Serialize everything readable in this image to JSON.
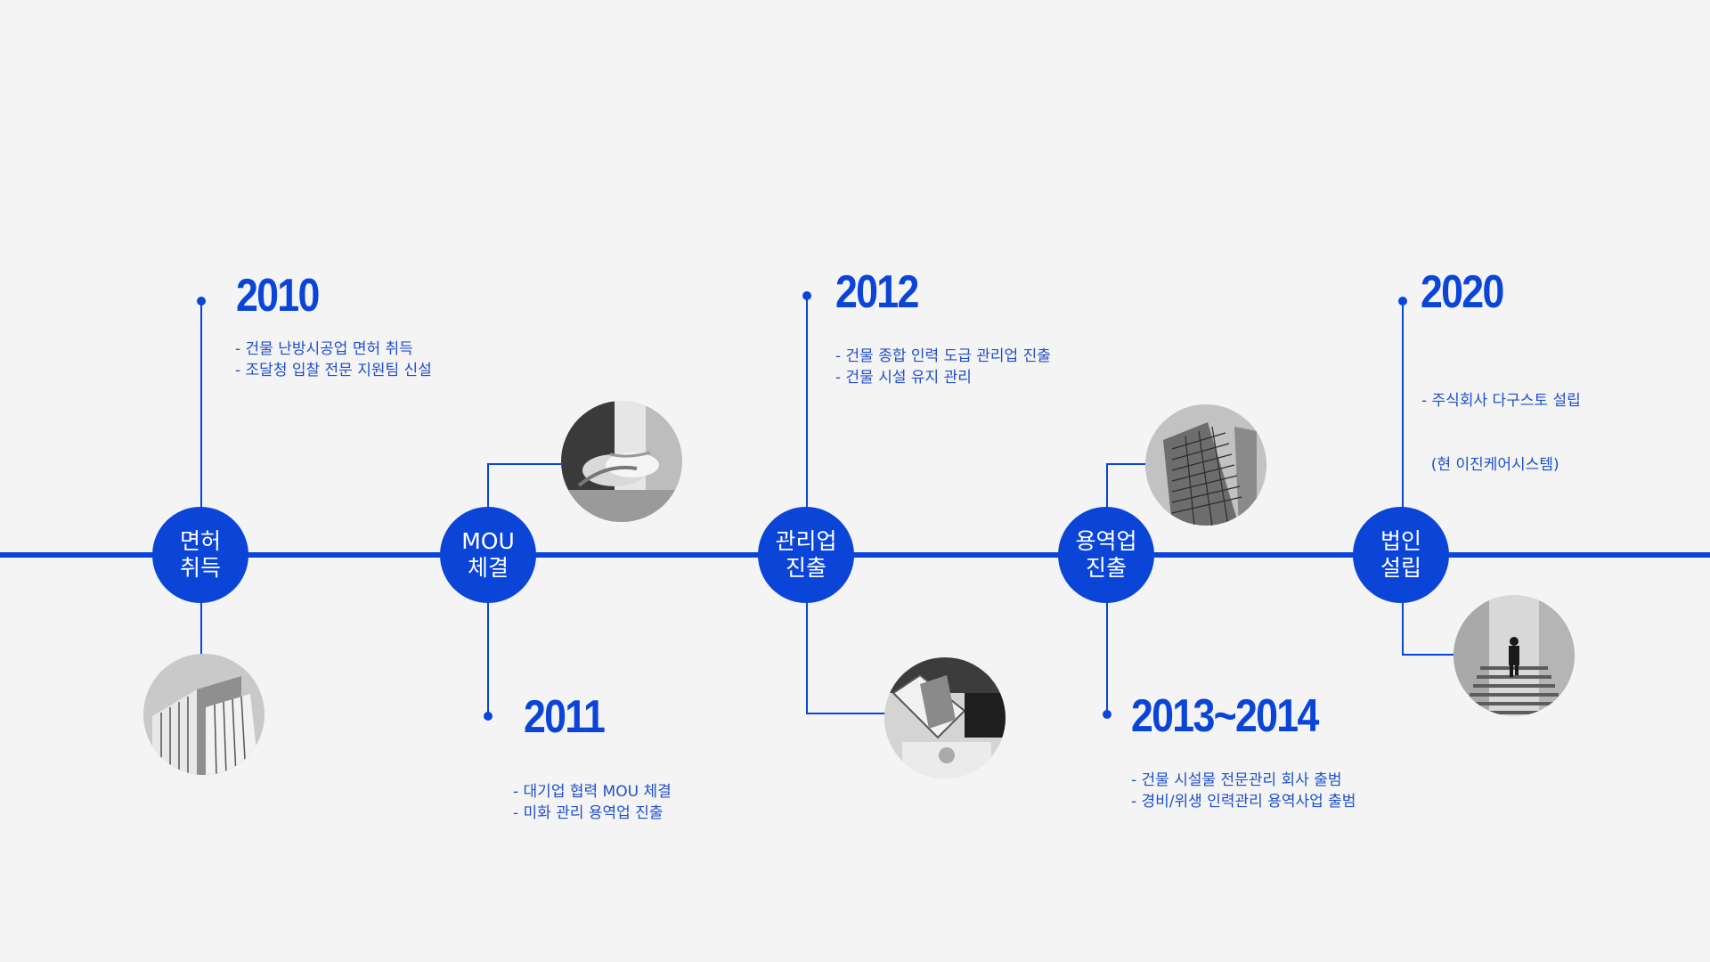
{
  "milestones": [
    {
      "node_line1": "면허",
      "node_line2": "취득",
      "year": "2010",
      "desc": [
        "- 건물 난방시공업 면허 취득",
        "- 조달청 입찰 전문 지원팀 신설"
      ],
      "photo_icon": "office-building-photo"
    },
    {
      "node_line1": "MOU",
      "node_line2": "체결",
      "year": "2011",
      "desc": [
        "- 대기업 협력 MOU 체결",
        "- 미화 관리 용역업 진출"
      ],
      "photo_icon": "handshake-photo"
    },
    {
      "node_line1": "관리업",
      "node_line2": "진출",
      "year": "2012",
      "desc": [
        "- 건물 종합 인력 도급 관리업 진출",
        "- 건물 시설 유지 관리"
      ],
      "photo_icon": "meeting-documents-photo"
    },
    {
      "node_line1": "용역업",
      "node_line2": "진출",
      "year": "2013~2014",
      "desc": [
        "- 건물 시설물 전문관리 회사 출범",
        "- 경비/위생 인력관리 용역사업 출범"
      ],
      "photo_icon": "glass-tower-photo"
    },
    {
      "node_line1": "법인",
      "node_line2": "설립",
      "year": "2020",
      "desc": [
        "- 주식회사 다구스토 설립",
        "  (현 이진케어시스템)"
      ],
      "photo_icon": "man-on-stairs-photo"
    }
  ],
  "colors": {
    "accent": "#0a45d8",
    "background": "#f4f4f4",
    "text": "#1f4fc9"
  }
}
